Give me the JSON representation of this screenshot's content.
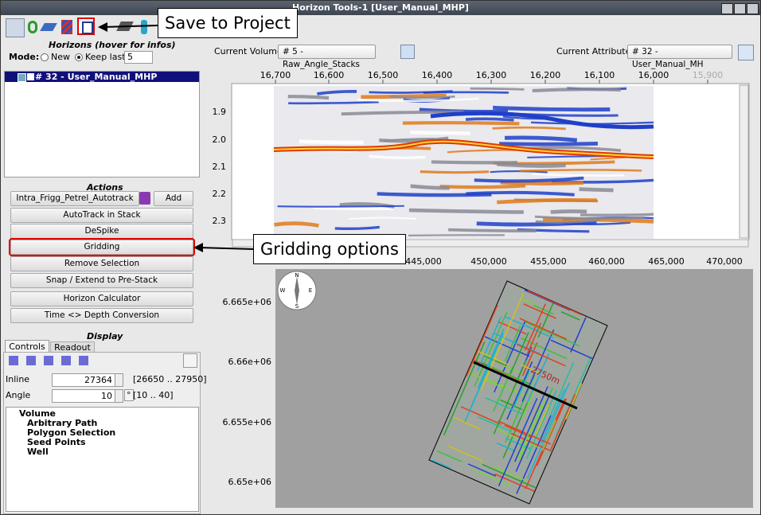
{
  "window": {
    "title": "Horizon Tools-1 [User_Manual_MHP]"
  },
  "callouts": {
    "save": "Save to Project",
    "gridding": "Gridding options"
  },
  "horizons": {
    "heading": "Horizons (hover for infos)",
    "mode_label": "Mode:",
    "mode_new": "New",
    "mode_keep": "Keep last",
    "keep_count": "5",
    "items": [
      "# 32 - User_Manual_MHP"
    ]
  },
  "actions": {
    "heading": "Actions",
    "tracker": "Intra_Frigg_Petrel_Autotrack",
    "add": "Add",
    "buttons": [
      "AutoTrack in Stack",
      "DeSpike",
      "Gridding",
      "Remove Selection",
      "Snap / Extend to Pre-Stack",
      "Horizon Calculator",
      "Time <> Depth Conversion"
    ]
  },
  "display": {
    "heading": "Display",
    "tabs": [
      "Controls",
      "Readout"
    ],
    "inline_label": "Inline",
    "inline_value": "27364",
    "inline_range": "[26650 .. 27950]",
    "angle_label": "Angle",
    "angle_value": "10",
    "angle_unit": "°",
    "angle_range": "[10 .. 40]",
    "tree": [
      "Volume",
      "Arbitrary Path",
      "Polygon Selection",
      "Seed Points",
      "Well"
    ]
  },
  "seismic": {
    "volume_label": "Current Volume:",
    "volume": "# 5 - Raw_Angle_Stacks",
    "attribute_label": "Current Attribute:",
    "attribute": "# 32 - User_Manual_MH",
    "trace_ticks": [
      "16,700",
      "16,600",
      "16,500",
      "16,400",
      "16,300",
      "16,200",
      "16,100",
      "16,000",
      "15,900"
    ],
    "time_ticks": [
      "1.9",
      "2.0",
      "2.1",
      "2.2",
      "2.3"
    ]
  },
  "map": {
    "x_ticks": [
      "445,000",
      "450,000",
      "455,000",
      "460,000",
      "465,000",
      "470,000"
    ],
    "y_ticks": [
      "6.665e+06",
      "6.66e+06",
      "6.655e+06",
      "6.65e+06"
    ],
    "compass": [
      "N",
      "E",
      "S",
      "W"
    ],
    "annotations": [
      "2750m"
    ]
  }
}
